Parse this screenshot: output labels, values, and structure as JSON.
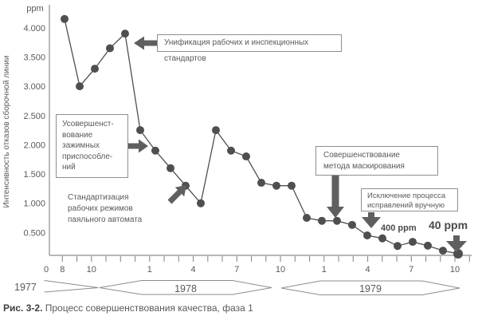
{
  "colors": {
    "series": "#4f4f4f",
    "axis": "#8c8c8c",
    "text": "#595959",
    "bold_text": "#4a4a4a"
  },
  "chart_data": {
    "type": "line",
    "unit_label": "ppm",
    "ylabel": "Интенсивность отказов сборочной линии",
    "y_ticks": [
      {
        "value": 4000,
        "label": "4.000"
      },
      {
        "value": 3500,
        "label": "3.500"
      },
      {
        "value": 3000,
        "label": "3.000"
      },
      {
        "value": 2500,
        "label": "2.500"
      },
      {
        "value": 2000,
        "label": "2.000"
      },
      {
        "value": 1500,
        "label": "1.500"
      },
      {
        "value": 1000,
        "label": "1.000"
      },
      {
        "value": 500,
        "label": "0.500"
      }
    ],
    "ylim": [
      0,
      4400
    ],
    "x_axis": {
      "origin_label": "0",
      "tick_count": 29,
      "tick_labels": [
        {
          "tick": 0,
          "label": "8"
        },
        {
          "tick": 2,
          "label": "10"
        },
        {
          "tick": 6,
          "label": "1"
        },
        {
          "tick": 9,
          "label": "4"
        },
        {
          "tick": 12,
          "label": "7"
        },
        {
          "tick": 15,
          "label": "10"
        },
        {
          "tick": 18,
          "label": "1"
        },
        {
          "tick": 21,
          "label": "4"
        },
        {
          "tick": 24,
          "label": "7"
        },
        {
          "tick": 27,
          "label": "10"
        }
      ]
    },
    "years": [
      {
        "label": "1977",
        "text_outside": true
      },
      {
        "label": "1978",
        "text_outside": false
      },
      {
        "label": "1979",
        "text_outside": false
      }
    ],
    "series": [
      {
        "name": "ppm",
        "months": [
          "08.1977",
          "09.1977",
          "10.1977",
          "11.1977",
          "12.1977",
          "01.1978",
          "02.1978",
          "03.1978",
          "04.1978",
          "05.1978",
          "06.1978",
          "07.1978",
          "08.1978",
          "09.1978",
          "10.1978",
          "11.1978",
          "12.1978",
          "01.1979",
          "02.1979",
          "03.1979",
          "04.1979",
          "05.1979",
          "06.1979",
          "07.1979",
          "08.1979",
          "09.1979",
          "10.1979"
        ],
        "values": [
          4150,
          3000,
          3300,
          3650,
          3900,
          2250,
          1900,
          1600,
          1300,
          1000,
          2250,
          1900,
          1800,
          1350,
          1300,
          1300,
          750,
          700,
          700,
          630,
          450,
          400,
          270,
          340,
          275,
          190,
          40
        ]
      }
    ],
    "grid": false,
    "legend": false
  },
  "annotations": {
    "unification": "Унификация рабочих и инспекционных стандартов",
    "clamping": "Усовершенст-\nвование\nзажимных\nприспособле-\nний",
    "standardization": "Стандартизация\nрабочих режимов\nпаяльного автомата",
    "masking": "Совершенствование\nметода маскирования",
    "manual_fix": "Исключение процесса\nисправлений вручную",
    "ppm400": "400 ppm",
    "ppm40": "40 ppm"
  },
  "caption": {
    "prefix": "Рис. 3-2.",
    "text": " Процесс совершенствования качества, фаза 1"
  }
}
